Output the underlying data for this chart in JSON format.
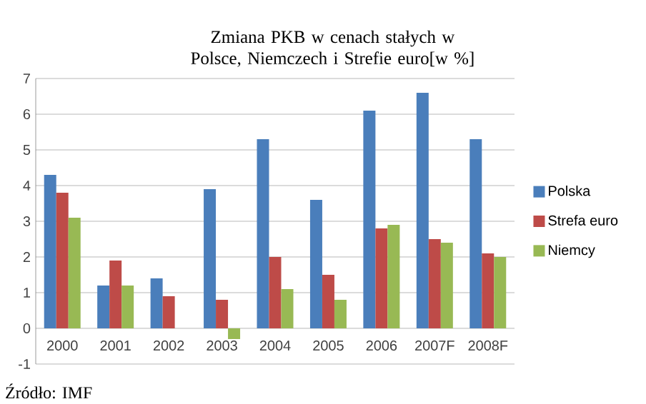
{
  "chart_data": {
    "type": "bar",
    "title": "Zmiana PKB w cenach stałych w Polsce, Niemczech i Strefie euro[w %]",
    "categories": [
      "2000",
      "2001",
      "2002",
      "2003",
      "2004",
      "2005",
      "2006",
      "2007F",
      "2008F"
    ],
    "series": [
      {
        "name": "Polska",
        "color": "#4a7ebb",
        "values": [
          4.3,
          1.2,
          1.4,
          3.9,
          5.3,
          3.6,
          6.1,
          6.6,
          5.3
        ]
      },
      {
        "name": "Strefa euro",
        "color": "#be4b48",
        "values": [
          3.8,
          1.9,
          0.9,
          0.8,
          2.0,
          1.5,
          2.8,
          2.5,
          2.1
        ]
      },
      {
        "name": "Niemcy",
        "color": "#98b954",
        "values": [
          3.1,
          1.2,
          0.0,
          -0.3,
          1.1,
          0.8,
          2.9,
          2.4,
          2.0
        ]
      }
    ],
    "ylim": [
      -1,
      7
    ],
    "yticks": [
      -1,
      0,
      1,
      2,
      3,
      4,
      5,
      6,
      7
    ],
    "grid": "y",
    "legend": "right",
    "annotations": [
      "Źródło: IMF"
    ]
  }
}
